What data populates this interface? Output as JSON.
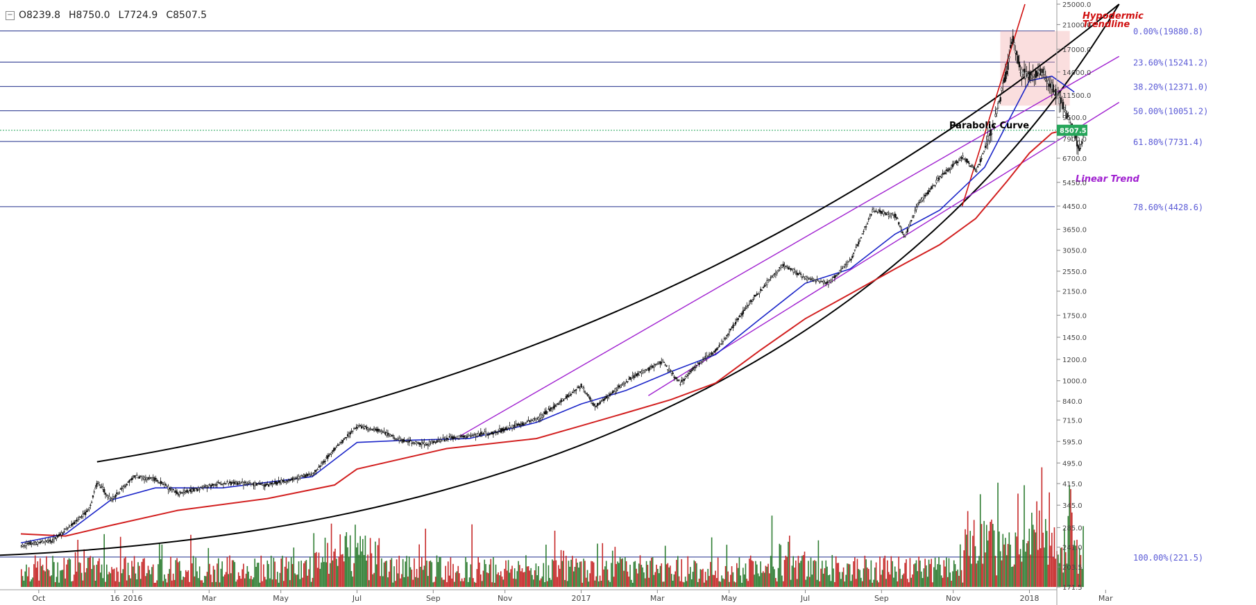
{
  "ohlc": {
    "o": "O8239.8",
    "h": "H8750.0",
    "l": "L7724.9",
    "c": "C8507.5"
  },
  "colors": {
    "up": "#2e7d32",
    "down": "#c62828",
    "ma_fast": "#1a24c8",
    "ma_slow": "#d21f1f",
    "fib": "#1f2d8a",
    "fib_text": "#5a5ad6",
    "purple": "#a020d0",
    "annot_red": "#d01010",
    "last": "#26a65b"
  },
  "chart_data": {
    "type": "candlestick",
    "scale": "log",
    "y_ticks": [
      "25000.0",
      "21000.0",
      "17000.0",
      "14000.0",
      "11500.0",
      "9500.0",
      "7900.0",
      "6700.0",
      "5450.0",
      "4450.0",
      "3650.0",
      "3050.0",
      "2550.0",
      "2150.0",
      "1750.0",
      "1450.0",
      "1200.0",
      "1000.0",
      "840.0",
      "715.0",
      "595.0",
      "495.0",
      "415.0",
      "345.0",
      "285.0",
      "241.0",
      "203.5",
      "171.5"
    ],
    "x_ticks": [
      "Oct",
      "16",
      "2016",
      "Mar",
      "May",
      "Jul",
      "Sep",
      "Nov",
      "2017",
      "Mar",
      "May",
      "Jul",
      "Sep",
      "Nov",
      "2018",
      "Mar"
    ],
    "last_price": "8507.5",
    "fib_levels": [
      {
        "label": "0.00%(19880.8)",
        "value": 19880.8
      },
      {
        "label": "23.60%(15241.2)",
        "value": 15241.2
      },
      {
        "label": "38.20%(12371.0)",
        "value": 12371.0
      },
      {
        "label": "50.00%(10051.2)",
        "value": 10051.2
      },
      {
        "label": "61.80%(7731.4)",
        "value": 7731.4
      },
      {
        "label": "78.60%(4428.6)",
        "value": 4428.6
      },
      {
        "label": "100.00%(221.5)",
        "value": 221.5
      }
    ],
    "annotations": [
      {
        "text": "Hypodermic",
        "color": "red"
      },
      {
        "text": "Trendline",
        "color": "red"
      },
      {
        "text": "Parabolic Curve",
        "color": "black"
      },
      {
        "text": "Linear Trend",
        "color": "purple"
      }
    ],
    "price_path": [
      [
        2015.75,
        245
      ],
      [
        2015.82,
        255
      ],
      [
        2015.9,
        330
      ],
      [
        2015.92,
        420
      ],
      [
        2015.95,
        360
      ],
      [
        2016.0,
        440
      ],
      [
        2016.05,
        430
      ],
      [
        2016.1,
        380
      ],
      [
        2016.2,
        420
      ],
      [
        2016.3,
        410
      ],
      [
        2016.4,
        450
      ],
      [
        2016.45,
        560
      ],
      [
        2016.5,
        680
      ],
      [
        2016.55,
        650
      ],
      [
        2016.6,
        600
      ],
      [
        2016.65,
        580
      ],
      [
        2016.7,
        610
      ],
      [
        2016.8,
        640
      ],
      [
        2016.9,
        720
      ],
      [
        2017.0,
        960
      ],
      [
        2017.03,
        800
      ],
      [
        2017.1,
        1000
      ],
      [
        2017.18,
        1180
      ],
      [
        2017.22,
        980
      ],
      [
        2017.25,
        1120
      ],
      [
        2017.3,
        1300
      ],
      [
        2017.38,
        2000
      ],
      [
        2017.45,
        2700
      ],
      [
        2017.5,
        2400
      ],
      [
        2017.55,
        2300
      ],
      [
        2017.6,
        2800
      ],
      [
        2017.65,
        4300
      ],
      [
        2017.7,
        4100
      ],
      [
        2017.72,
        3400
      ],
      [
        2017.75,
        4500
      ],
      [
        2017.8,
        5700
      ],
      [
        2017.85,
        6800
      ],
      [
        2017.88,
        6000
      ],
      [
        2017.92,
        9000
      ],
      [
        2017.95,
        14500
      ],
      [
        2017.96,
        19000
      ],
      [
        2017.98,
        14000
      ],
      [
        2018.0,
        13500
      ],
      [
        2018.03,
        14000
      ],
      [
        2018.06,
        11500
      ],
      [
        2018.08,
        10000
      ],
      [
        2018.1,
        8200
      ],
      [
        2018.11,
        7000
      ],
      [
        2018.12,
        8507
      ]
    ],
    "ma_fast_path": [
      [
        2015.75,
        250
      ],
      [
        2015.85,
        270
      ],
      [
        2015.95,
        360
      ],
      [
        2016.05,
        400
      ],
      [
        2016.2,
        400
      ],
      [
        2016.4,
        440
      ],
      [
        2016.5,
        590
      ],
      [
        2016.6,
        600
      ],
      [
        2016.75,
        610
      ],
      [
        2016.9,
        700
      ],
      [
        2017.0,
        820
      ],
      [
        2017.1,
        920
      ],
      [
        2017.2,
        1080
      ],
      [
        2017.3,
        1250
      ],
      [
        2017.4,
        1700
      ],
      [
        2017.5,
        2300
      ],
      [
        2017.6,
        2600
      ],
      [
        2017.7,
        3500
      ],
      [
        2017.8,
        4300
      ],
      [
        2017.9,
        6200
      ],
      [
        2017.95,
        9000
      ],
      [
        2018.0,
        13000
      ],
      [
        2018.05,
        13500
      ],
      [
        2018.1,
        11800
      ]
    ],
    "ma_slow_path": [
      [
        2015.75,
        270
      ],
      [
        2015.85,
        265
      ],
      [
        2015.95,
        290
      ],
      [
        2016.1,
        330
      ],
      [
        2016.3,
        365
      ],
      [
        2016.45,
        410
      ],
      [
        2016.5,
        470
      ],
      [
        2016.7,
        560
      ],
      [
        2016.9,
        610
      ],
      [
        2017.0,
        680
      ],
      [
        2017.1,
        760
      ],
      [
        2017.2,
        850
      ],
      [
        2017.3,
        980
      ],
      [
        2017.4,
        1300
      ],
      [
        2017.5,
        1700
      ],
      [
        2017.6,
        2100
      ],
      [
        2017.7,
        2600
      ],
      [
        2017.8,
        3200
      ],
      [
        2017.88,
        4000
      ],
      [
        2017.95,
        5500
      ],
      [
        2018.0,
        7000
      ],
      [
        2018.05,
        8300
      ],
      [
        2018.1,
        8700
      ]
    ]
  }
}
